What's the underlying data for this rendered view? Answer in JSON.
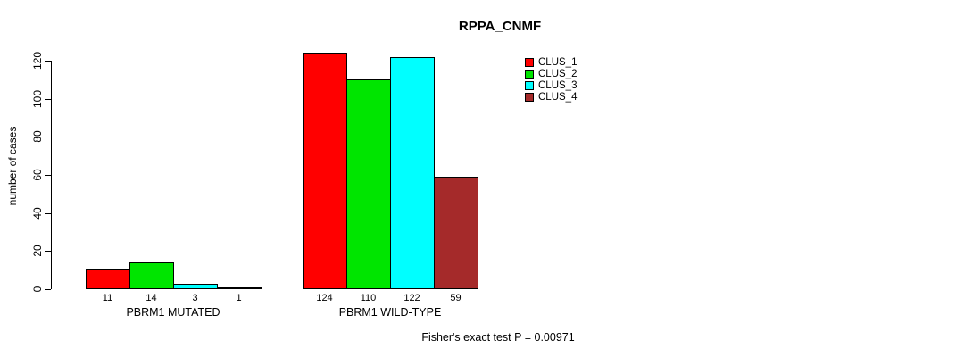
{
  "chart_data": {
    "type": "bar",
    "title": "RPPA_CNMF",
    "ylabel": "number of cases",
    "xlabel": "",
    "annotation": "Fisher's exact test P = 0.00971",
    "categories": [
      "PBRM1 MUTATED",
      "PBRM1 WILD-TYPE"
    ],
    "series": [
      {
        "name": "CLUS_1",
        "color": "#ff0000",
        "values": [
          11,
          124
        ]
      },
      {
        "name": "CLUS_2",
        "color": "#00e500",
        "values": [
          14,
          110
        ]
      },
      {
        "name": "CLUS_3",
        "color": "#00ffff",
        "values": [
          3,
          122
        ]
      },
      {
        "name": "CLUS_4",
        "color": "#a52a2a",
        "values": [
          1,
          59
        ]
      }
    ],
    "bar_value_labels": [
      [
        11,
        14,
        3,
        1
      ],
      [
        124,
        110,
        122,
        59
      ]
    ],
    "yticks": [
      0,
      20,
      40,
      60,
      80,
      100,
      120
    ],
    "ylim": [
      0,
      128
    ],
    "grid": false,
    "bar_border_color": "#000000",
    "legend_position": "top-right",
    "legend": [
      "CLUS_1",
      "CLUS_2",
      "CLUS_3",
      "CLUS_4"
    ]
  }
}
